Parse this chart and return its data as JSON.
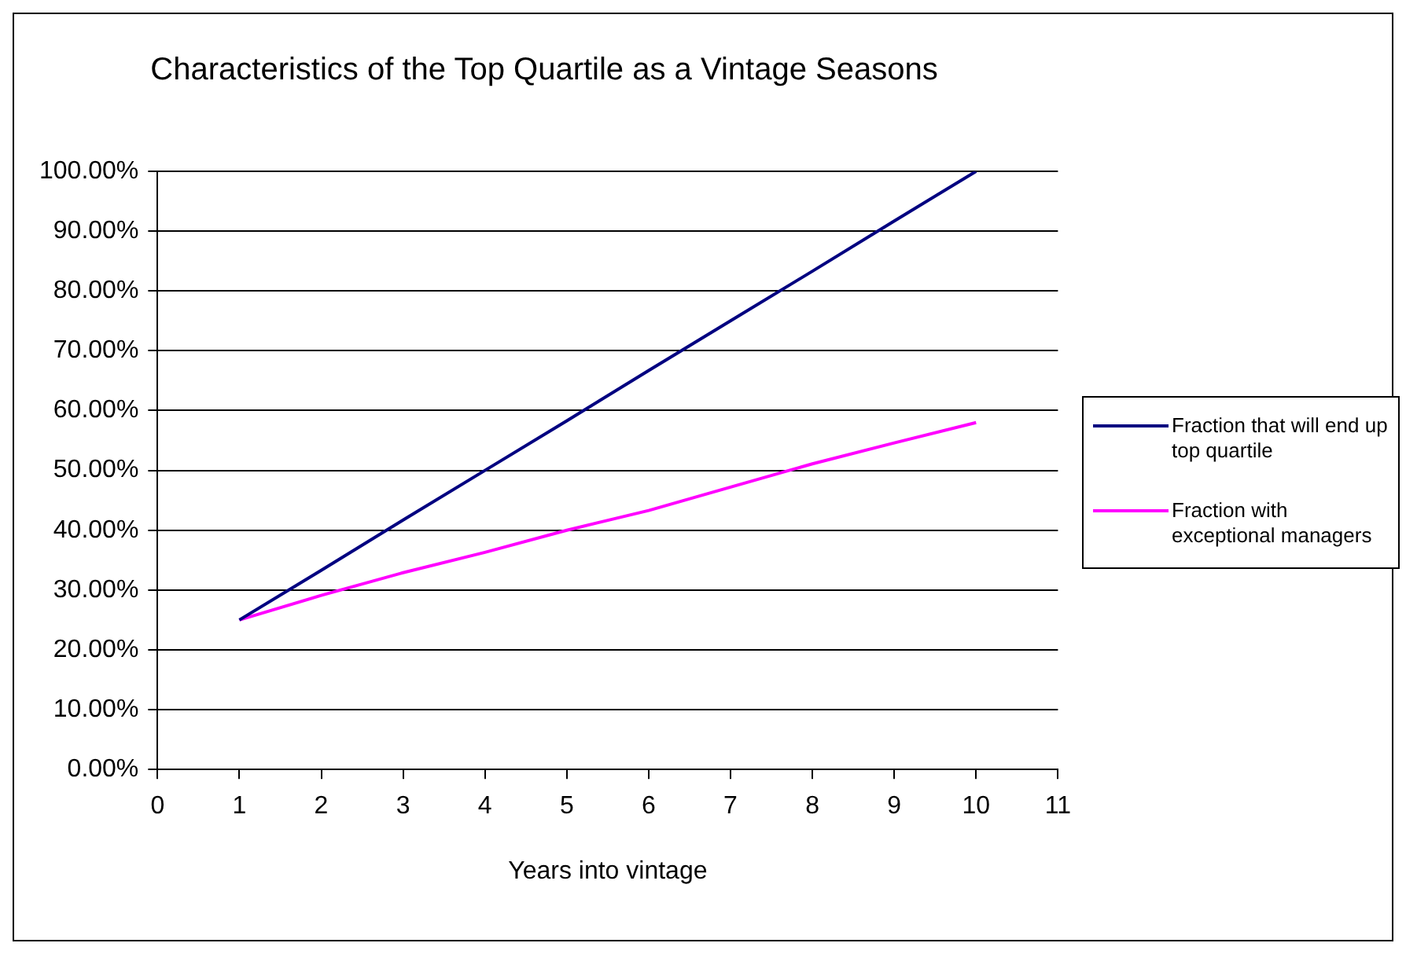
{
  "chart_data": {
    "type": "line",
    "title": "Characteristics of the Top Quartile as a Vintage Seasons",
    "xlabel": "Years into vintage",
    "x": [
      1,
      2,
      3,
      4,
      5,
      6,
      7,
      8,
      9,
      10
    ],
    "series": [
      {
        "name": "Fraction that will end up top quartile",
        "color": "#000080",
        "values": [
          25,
          33.3,
          41.7,
          50,
          58.3,
          66.7,
          75,
          83.3,
          91.7,
          100
        ]
      },
      {
        "name": "Fraction with exceptional managers",
        "color": "#ff00ff",
        "values": [
          25,
          29.1,
          32.9,
          36.3,
          40,
          43.3,
          47.2,
          51.1,
          54.6,
          58
        ]
      }
    ],
    "xlim": [
      0,
      11
    ],
    "xticks": [
      0,
      1,
      2,
      3,
      4,
      5,
      6,
      7,
      8,
      9,
      10,
      11
    ],
    "ylim": [
      0,
      100
    ],
    "yticks": [
      {
        "value": 0,
        "label": "0.00%"
      },
      {
        "value": 10,
        "label": "10.00%"
      },
      {
        "value": 20,
        "label": "20.00%"
      },
      {
        "value": 30,
        "label": "30.00%"
      },
      {
        "value": 40,
        "label": "40.00%"
      },
      {
        "value": 50,
        "label": "50.00%"
      },
      {
        "value": 60,
        "label": "60.00%"
      },
      {
        "value": 70,
        "label": "70.00%"
      },
      {
        "value": 80,
        "label": "80.00%"
      },
      {
        "value": 90,
        "label": "90.00%"
      },
      {
        "value": 100,
        "label": "100.00%"
      }
    ],
    "grid": "y",
    "legend": "right",
    "marker": "none",
    "line_style": "solid"
  }
}
